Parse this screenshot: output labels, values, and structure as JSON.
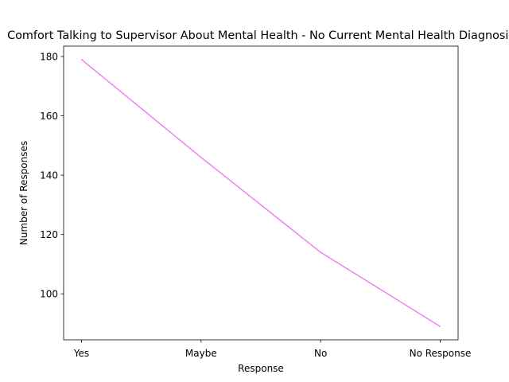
{
  "colors": {
    "line": "#ee82ee",
    "axes": "#000000",
    "background": "#ffffff"
  },
  "chart_data": {
    "type": "line",
    "title": "Comfort Talking to Supervisor About Mental Health - No Current Mental Health Diagnosis",
    "xlabel": "Response",
    "ylabel": "Number of Responses",
    "categories": [
      "Yes",
      "Maybe",
      "No",
      "No Response"
    ],
    "series": [
      {
        "values": [
          179,
          146,
          114,
          89
        ]
      }
    ],
    "ylim": [
      84.5,
      183.5
    ],
    "yticks": [
      100,
      120,
      140,
      160,
      180
    ],
    "grid": false
  }
}
